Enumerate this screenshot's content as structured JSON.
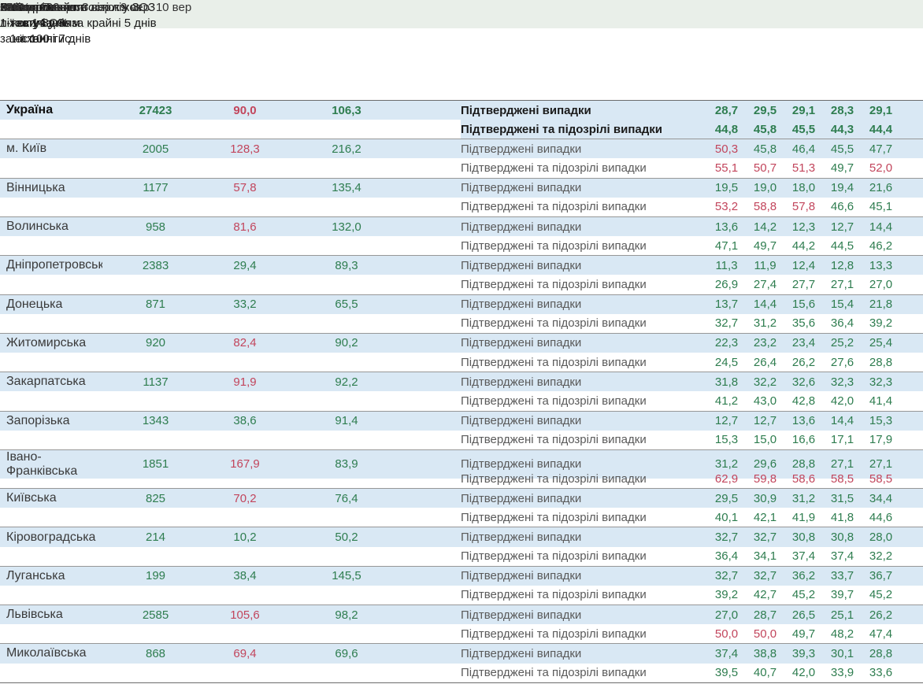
{
  "columns": {
    "region": "Регіон",
    "beds_l1": "Кількість",
    "beds_l2": "ліжок у ЗОЗ",
    "beds_l3": "1-ї хвилі",
    "incidence_l1": "Захворюваність",
    "incidence_l2": "за 14 днів",
    "incidence_l3": "на 100 тис.",
    "testing_l1": "Охоплення",
    "testing_l2": "тестуванням",
    "testing_l3": "за останні 7 днів",
    "category": "Категорії зайнятості ліжок",
    "occupancy_l1": "Завантаженість ліжок у ЗОЗ",
    "occupancy_l2": "1-ї хвилі у % за крайні 5 днів",
    "incidence_threshold": "<40 на 100 тис.",
    "testing_threshold": ">24 на 100 тис.",
    "occupancy_threshold": "≤50%",
    "days": [
      "6 вер",
      "7 вер",
      "8 вер",
      "9 вер",
      "10 вер"
    ]
  },
  "colors": {
    "good": "#2e7d4f",
    "bad": "#c2455c",
    "row_band": "#d9e8f4",
    "header_band": "#e9efe9"
  },
  "rows": [
    {
      "region": "Україна",
      "emphasis": true,
      "beds": "27423",
      "incidence": "90,0",
      "incidence_status": "r",
      "testing": "106,3",
      "testing_status": "g",
      "sub": [
        {
          "label": "Підтверджені випадки",
          "values": [
            "28,7",
            "29,5",
            "29,1",
            "28,3",
            "29,1"
          ],
          "status": [
            "g",
            "g",
            "g",
            "g",
            "g"
          ]
        },
        {
          "label": "Підтверджені та підозрілі випадки",
          "values": [
            "44,8",
            "45,8",
            "45,5",
            "44,3",
            "44,4"
          ],
          "status": [
            "g",
            "g",
            "g",
            "g",
            "g"
          ]
        }
      ]
    },
    {
      "region": "м. Київ",
      "emphasis": false,
      "beds": "2005",
      "incidence": "128,3",
      "incidence_status": "r",
      "testing": "216,2",
      "testing_status": "g",
      "sub": [
        {
          "label": "Підтверджені випадки",
          "values": [
            "50,3",
            "45,8",
            "46,4",
            "45,5",
            "47,7"
          ],
          "status": [
            "r",
            "g",
            "g",
            "g",
            "g"
          ]
        },
        {
          "label": "Підтверджені та підозрілі випадки",
          "values": [
            "55,1",
            "50,7",
            "51,3",
            "49,7",
            "52,0"
          ],
          "status": [
            "r",
            "r",
            "r",
            "g",
            "r"
          ]
        }
      ]
    },
    {
      "region": "Вінницька",
      "emphasis": false,
      "beds": "1177",
      "incidence": "57,8",
      "incidence_status": "r",
      "testing": "135,4",
      "testing_status": "g",
      "sub": [
        {
          "label": "Підтверджені випадки",
          "values": [
            "19,5",
            "19,0",
            "18,0",
            "19,4",
            "21,6"
          ],
          "status": [
            "g",
            "g",
            "g",
            "g",
            "g"
          ]
        },
        {
          "label": "Підтверджені та підозрілі випадки",
          "values": [
            "53,2",
            "58,8",
            "57,8",
            "46,6",
            "45,1"
          ],
          "status": [
            "r",
            "r",
            "r",
            "g",
            "g"
          ]
        }
      ]
    },
    {
      "region": "Волинська",
      "emphasis": false,
      "beds": "958",
      "incidence": "81,6",
      "incidence_status": "r",
      "testing": "132,0",
      "testing_status": "g",
      "sub": [
        {
          "label": "Підтверджені випадки",
          "values": [
            "13,6",
            "14,2",
            "12,3",
            "12,7",
            "14,4"
          ],
          "status": [
            "g",
            "g",
            "g",
            "g",
            "g"
          ]
        },
        {
          "label": "Підтверджені та підозрілі випадки",
          "values": [
            "47,1",
            "49,7",
            "44,2",
            "44,5",
            "46,2"
          ],
          "status": [
            "g",
            "g",
            "g",
            "g",
            "g"
          ]
        }
      ]
    },
    {
      "region": "Дніпропетровська",
      "emphasis": false,
      "beds": "2383",
      "incidence": "29,4",
      "incidence_status": "g",
      "testing": "89,3",
      "testing_status": "g",
      "sub": [
        {
          "label": "Підтверджені випадки",
          "values": [
            "11,3",
            "11,9",
            "12,4",
            "12,8",
            "13,3"
          ],
          "status": [
            "g",
            "g",
            "g",
            "g",
            "g"
          ]
        },
        {
          "label": "Підтверджені та підозрілі випадки",
          "values": [
            "26,9",
            "27,4",
            "27,7",
            "27,1",
            "27,0"
          ],
          "status": [
            "g",
            "g",
            "g",
            "g",
            "g"
          ]
        }
      ]
    },
    {
      "region": "Донецька",
      "emphasis": false,
      "beds": "871",
      "incidence": "33,2",
      "incidence_status": "g",
      "testing": "65,5",
      "testing_status": "g",
      "sub": [
        {
          "label": "Підтверджені випадки",
          "values": [
            "13,7",
            "14,4",
            "15,6",
            "15,4",
            "21,8"
          ],
          "status": [
            "g",
            "g",
            "g",
            "g",
            "g"
          ]
        },
        {
          "label": "Підтверджені та підозрілі випадки",
          "values": [
            "32,7",
            "31,2",
            "35,6",
            "36,4",
            "39,2"
          ],
          "status": [
            "g",
            "g",
            "g",
            "g",
            "g"
          ]
        }
      ]
    },
    {
      "region": "Житомирська",
      "emphasis": false,
      "beds": "920",
      "incidence": "82,4",
      "incidence_status": "r",
      "testing": "90,2",
      "testing_status": "g",
      "sub": [
        {
          "label": "Підтверджені випадки",
          "values": [
            "22,3",
            "23,2",
            "23,4",
            "25,2",
            "25,4"
          ],
          "status": [
            "g",
            "g",
            "g",
            "g",
            "g"
          ]
        },
        {
          "label": "Підтверджені та підозрілі випадки",
          "values": [
            "24,5",
            "26,4",
            "26,2",
            "27,6",
            "28,8"
          ],
          "status": [
            "g",
            "g",
            "g",
            "g",
            "g"
          ]
        }
      ]
    },
    {
      "region": "Закарпатська",
      "emphasis": false,
      "beds": "1137",
      "incidence": "91,9",
      "incidence_status": "r",
      "testing": "92,2",
      "testing_status": "g",
      "sub": [
        {
          "label": "Підтверджені випадки",
          "values": [
            "31,8",
            "32,2",
            "32,6",
            "32,3",
            "32,3"
          ],
          "status": [
            "g",
            "g",
            "g",
            "g",
            "g"
          ]
        },
        {
          "label": "Підтверджені та підозрілі випадки",
          "values": [
            "41,2",
            "43,0",
            "42,8",
            "42,0",
            "41,4"
          ],
          "status": [
            "g",
            "g",
            "g",
            "g",
            "g"
          ]
        }
      ]
    },
    {
      "region": "Запорізька",
      "emphasis": false,
      "beds": "1343",
      "incidence": "38,6",
      "incidence_status": "g",
      "testing": "91,4",
      "testing_status": "g",
      "sub": [
        {
          "label": "Підтверджені випадки",
          "values": [
            "12,7",
            "12,7",
            "13,6",
            "14,4",
            "15,3"
          ],
          "status": [
            "g",
            "g",
            "g",
            "g",
            "g"
          ]
        },
        {
          "label": "Підтверджені та підозрілі випадки",
          "values": [
            "15,3",
            "15,0",
            "16,6",
            "17,1",
            "17,9"
          ],
          "status": [
            "g",
            "g",
            "g",
            "g",
            "g"
          ]
        }
      ]
    },
    {
      "region": "Івано-Франківська",
      "emphasis": false,
      "beds": "1851",
      "incidence": "167,9",
      "incidence_status": "r",
      "testing": "83,9",
      "testing_status": "g",
      "sub": [
        {
          "label": "Підтверджені випадки",
          "values": [
            "31,2",
            "29,6",
            "28,8",
            "27,1",
            "27,1"
          ],
          "status": [
            "g",
            "g",
            "g",
            "g",
            "g"
          ]
        },
        {
          "label": "Підтверджені та підозрілі випадки",
          "values": [
            "62,9",
            "59,8",
            "58,6",
            "58,5",
            "58,5"
          ],
          "status": [
            "r",
            "r",
            "r",
            "r",
            "r"
          ]
        }
      ]
    },
    {
      "region": "Київська",
      "emphasis": false,
      "beds": "825",
      "incidence": "70,2",
      "incidence_status": "r",
      "testing": "76,4",
      "testing_status": "g",
      "sub": [
        {
          "label": "Підтверджені випадки",
          "values": [
            "29,5",
            "30,9",
            "31,2",
            "31,5",
            "34,4"
          ],
          "status": [
            "g",
            "g",
            "g",
            "g",
            "g"
          ]
        },
        {
          "label": "Підтверджені та підозрілі випадки",
          "values": [
            "40,1",
            "42,1",
            "41,9",
            "41,8",
            "44,6"
          ],
          "status": [
            "g",
            "g",
            "g",
            "g",
            "g"
          ]
        }
      ]
    },
    {
      "region": "Кіровоградська",
      "emphasis": false,
      "beds": "214",
      "incidence": "10,2",
      "incidence_status": "g",
      "testing": "50,2",
      "testing_status": "g",
      "sub": [
        {
          "label": "Підтверджені випадки",
          "values": [
            "32,7",
            "32,7",
            "30,8",
            "30,8",
            "28,0"
          ],
          "status": [
            "g",
            "g",
            "g",
            "g",
            "g"
          ]
        },
        {
          "label": "Підтверджені та підозрілі випадки",
          "values": [
            "36,4",
            "34,1",
            "37,4",
            "37,4",
            "32,2"
          ],
          "status": [
            "g",
            "g",
            "g",
            "g",
            "g"
          ]
        }
      ]
    },
    {
      "region": "Луганська",
      "emphasis": false,
      "beds": "199",
      "incidence": "38,4",
      "incidence_status": "g",
      "testing": "145,5",
      "testing_status": "g",
      "sub": [
        {
          "label": "Підтверджені випадки",
          "values": [
            "32,7",
            "32,7",
            "36,2",
            "33,7",
            "36,7"
          ],
          "status": [
            "g",
            "g",
            "g",
            "g",
            "g"
          ]
        },
        {
          "label": "Підтверджені та підозрілі випадки",
          "values": [
            "39,2",
            "42,7",
            "45,2",
            "39,7",
            "45,2"
          ],
          "status": [
            "g",
            "g",
            "g",
            "g",
            "g"
          ]
        }
      ]
    },
    {
      "region": "Львівська",
      "emphasis": false,
      "beds": "2585",
      "incidence": "105,6",
      "incidence_status": "r",
      "testing": "98,2",
      "testing_status": "g",
      "sub": [
        {
          "label": "Підтверджені випадки",
          "values": [
            "27,0",
            "28,7",
            "26,5",
            "25,1",
            "26,2"
          ],
          "status": [
            "g",
            "g",
            "g",
            "g",
            "g"
          ]
        },
        {
          "label": "Підтверджені та підозрілі випадки",
          "values": [
            "50,0",
            "50,0",
            "49,7",
            "48,2",
            "47,4"
          ],
          "status": [
            "r",
            "r",
            "g",
            "g",
            "g"
          ]
        }
      ]
    },
    {
      "region": "Миколаївська",
      "emphasis": false,
      "beds": "868",
      "incidence": "69,4",
      "incidence_status": "r",
      "testing": "69,6",
      "testing_status": "g",
      "sub": [
        {
          "label": "Підтверджені випадки",
          "values": [
            "37,4",
            "38,8",
            "39,3",
            "30,1",
            "28,8"
          ],
          "status": [
            "g",
            "g",
            "g",
            "g",
            "g"
          ]
        },
        {
          "label": "Підтверджені та підозрілі випадки",
          "values": [
            "39,5",
            "40,7",
            "42,0",
            "33,9",
            "33,6"
          ],
          "status": [
            "g",
            "g",
            "g",
            "g",
            "g"
          ]
        }
      ]
    }
  ]
}
